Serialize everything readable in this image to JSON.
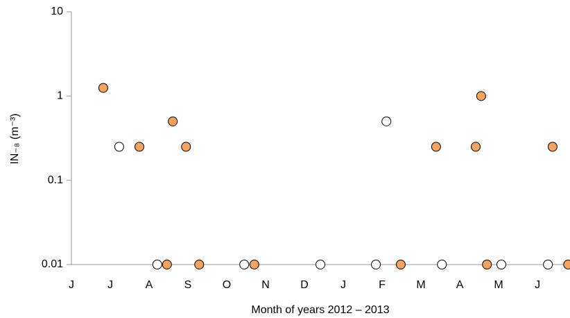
{
  "chart_data": {
    "type": "scatter",
    "xlabel": "Month of years 2012 – 2013",
    "ylabel": "IN₋₈ (m⁻³)",
    "log_y": true,
    "ylim": [
      0.01,
      10
    ],
    "yticks": [
      0.01,
      0.1,
      1,
      10
    ],
    "xlim": [
      0,
      12.82
    ],
    "xticks": [
      {
        "value": 0,
        "label": "J"
      },
      {
        "value": 1,
        "label": "J"
      },
      {
        "value": 2,
        "label": "A"
      },
      {
        "value": 3,
        "label": "S"
      },
      {
        "value": 4,
        "label": "O"
      },
      {
        "value": 5,
        "label": "N"
      },
      {
        "value": 6,
        "label": "D"
      },
      {
        "value": 7,
        "label": "J"
      },
      {
        "value": 8,
        "label": "F"
      },
      {
        "value": 9,
        "label": "M"
      },
      {
        "value": 10,
        "label": "A"
      },
      {
        "value": 11,
        "label": "M"
      },
      {
        "value": 12,
        "label": "J"
      }
    ],
    "series": [
      {
        "color": "#f4a460",
        "x": [
          0.82,
          1.75,
          2.46,
          2.61,
          2.95,
          3.29,
          4.71,
          8.48,
          9.39,
          10.41,
          10.55,
          10.7,
          12.39,
          12.79
        ],
        "values": [
          1.25,
          0.25,
          0.01,
          0.5,
          0.25,
          0.01,
          0.01,
          0.01,
          0.25,
          0.25,
          1,
          0.01,
          0.25,
          0.01
        ]
      },
      {
        "color": "#ffffff",
        "x": [
          1.23,
          2.21,
          4.45,
          6.41,
          7.84,
          8.11,
          9.54,
          11.07,
          12.27
        ],
        "values": [
          0.25,
          0.01,
          0.01,
          0.01,
          0.01,
          0.5,
          0.01,
          0.01,
          0.01
        ]
      }
    ]
  }
}
